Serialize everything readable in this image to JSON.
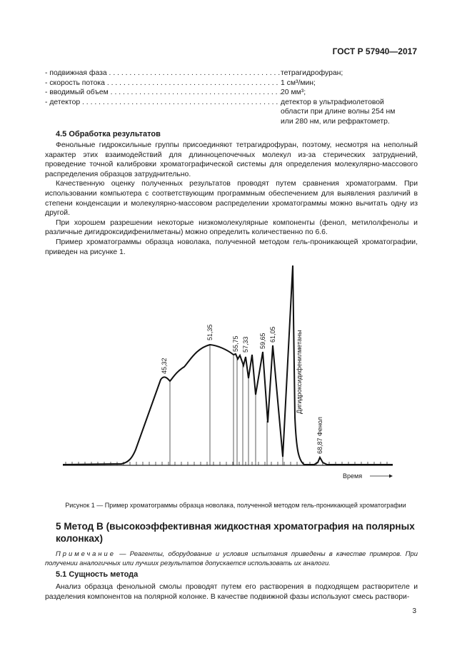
{
  "header": {
    "doc_id": "ГОСТ Р 57940—2017"
  },
  "spec_list": [
    {
      "key": "- подвижная фаза",
      "value": "тетрагидрофуран;"
    },
    {
      "key": "- скорость потока",
      "value": "1 см³/мин;"
    },
    {
      "key": "- вводимый объем",
      "value": "20 мм³;"
    },
    {
      "key": "- детектор",
      "value": "детектор в ультрафиолетовой\nобласти при длине волны 254 нм\nили 280 нм, или рефрактометр."
    }
  ],
  "section_4_5": {
    "title": "4.5 Обработка результатов",
    "paragraphs": [
      "Фенольные гидроксильные группы присоединяют тетрагидрофуран, поэтому, несмотря на неполный характер этих взаимодействий для длинноцепочечных молекул из-за стерических затруднений, проведение точной калибровки хроматографической системы для определения молекулярно-массового распределения образцов затруднительно.",
      "Качественную оценку полученных результатов проводят путем сравнения хроматограмм. При использовании компьютера с соответствующим программным обеспечением для выявления различий в степени конденсации и молекулярно-массовом распределении хроматограммы можно вычитать одну из другой.",
      "При хорошем разрешении некоторые низкомолекулярные компоненты (фенол, метилолфенолы и различные дигидроксидифенилметаны) можно определить количественно по 6.6.",
      "Пример хроматограммы образца новолака, полученной методом гель-проникающей хроматографии, приведен на рисунке 1."
    ]
  },
  "figure": {
    "peak_labels": [
      "45,32",
      "51,35",
      "55,75",
      "57,33",
      "59,65",
      "61,05"
    ],
    "dihydroxy_label": "Дигидроксидифенилметаны",
    "phenol_label": "68,87 Фенол",
    "x_axis_label": "Время",
    "caption": "Рисунок 1 — Пример хроматограммы образца новолака, полученной методом гель-проникающей хроматографии"
  },
  "section_5": {
    "title": "5 Метод В (высокоэффективная жидкостная хроматография на полярных колонках)",
    "note_label": "Примечание",
    "note_text": " — Реагенты, оборудование и условия испытания приведены в качестве примеров. При получении аналогичных или лучших результатов допускается использовать их аналоги.",
    "subsection_title": "5.1 Сущность метода",
    "paragraph": "Анализ образца фенольной смолы проводят путем его растворения в подходящем растворителе и разделения компонентов на полярной колонке. В качестве подвижной фазы используют смесь раствори-"
  },
  "page_number": "3"
}
